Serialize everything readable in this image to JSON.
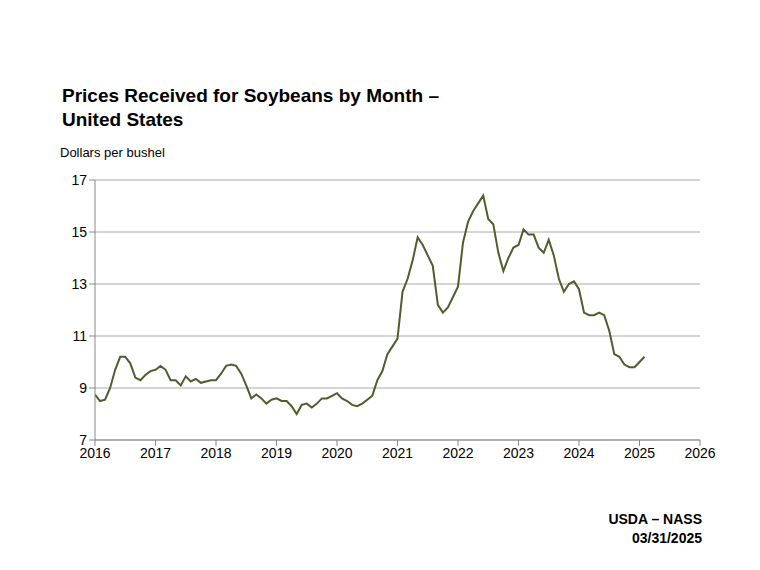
{
  "chart_data": {
    "type": "line",
    "title": "Prices Received for Soybeans by Month –\nUnited States",
    "y_label": "Dollars per bushel",
    "source": "USDA – NASS",
    "date": "03/31/2025",
    "color": "#4f5e2c",
    "grid": true,
    "xlim": [
      2016,
      2026
    ],
    "xticks": [
      2016,
      2017,
      2018,
      2019,
      2020,
      2021,
      2022,
      2023,
      2024,
      2025,
      2026
    ],
    "ylim": [
      7,
      17
    ],
    "yticks": [
      7,
      9,
      11,
      13,
      15,
      17
    ],
    "x": [
      2016,
      2016.083,
      2016.167,
      2016.25,
      2016.333,
      2016.417,
      2016.5,
      2016.583,
      2016.667,
      2016.75,
      2016.833,
      2016.917,
      2017,
      2017.083,
      2017.167,
      2017.25,
      2017.333,
      2017.417,
      2017.5,
      2017.583,
      2017.667,
      2017.75,
      2017.833,
      2017.917,
      2018,
      2018.083,
      2018.167,
      2018.25,
      2018.333,
      2018.417,
      2018.5,
      2018.583,
      2018.667,
      2018.75,
      2018.833,
      2018.917,
      2019,
      2019.083,
      2019.167,
      2019.25,
      2019.333,
      2019.417,
      2019.5,
      2019.583,
      2019.667,
      2019.75,
      2019.833,
      2019.917,
      2020,
      2020.083,
      2020.167,
      2020.25,
      2020.333,
      2020.417,
      2020.5,
      2020.583,
      2020.667,
      2020.75,
      2020.833,
      2020.917,
      2021,
      2021.083,
      2021.167,
      2021.25,
      2021.333,
      2021.417,
      2021.5,
      2021.583,
      2021.667,
      2021.75,
      2021.833,
      2021.917,
      2022,
      2022.083,
      2022.167,
      2022.25,
      2022.333,
      2022.417,
      2022.5,
      2022.583,
      2022.667,
      2022.75,
      2022.833,
      2022.917,
      2023,
      2023.083,
      2023.167,
      2023.25,
      2023.333,
      2023.417,
      2023.5,
      2023.583,
      2023.667,
      2023.75,
      2023.833,
      2023.917,
      2024,
      2024.083,
      2024.167,
      2024.25,
      2024.333,
      2024.417,
      2024.5,
      2024.583,
      2024.667,
      2024.75,
      2024.833,
      2024.917,
      2025,
      2025.083
    ],
    "values": [
      8.75,
      8.5,
      8.55,
      9.0,
      9.7,
      10.2,
      10.2,
      9.95,
      9.4,
      9.3,
      9.5,
      9.65,
      9.7,
      9.85,
      9.7,
      9.3,
      9.3,
      9.1,
      9.45,
      9.25,
      9.35,
      9.2,
      9.25,
      9.3,
      9.3,
      9.55,
      9.85,
      9.9,
      9.85,
      9.55,
      9.1,
      8.6,
      8.75,
      8.6,
      8.4,
      8.55,
      8.6,
      8.5,
      8.5,
      8.3,
      8.0,
      8.35,
      8.4,
      8.25,
      8.4,
      8.6,
      8.6,
      8.7,
      8.8,
      8.6,
      8.5,
      8.35,
      8.3,
      8.4,
      8.55,
      8.7,
      9.3,
      9.65,
      10.3,
      10.6,
      10.9,
      12.7,
      13.2,
      13.9,
      14.8,
      14.5,
      14.1,
      13.7,
      12.2,
      11.9,
      12.1,
      12.5,
      12.9,
      14.6,
      15.4,
      15.8,
      16.1,
      16.4,
      15.5,
      15.3,
      14.2,
      13.5,
      14.0,
      14.4,
      14.5,
      15.1,
      14.9,
      14.9,
      14.4,
      14.2,
      14.7,
      14.1,
      13.2,
      12.7,
      13.0,
      13.1,
      12.8,
      11.9,
      11.8,
      11.8,
      11.9,
      11.8,
      11.2,
      10.3,
      10.2,
      9.9,
      9.8,
      9.8,
      10.0,
      10.2
    ]
  }
}
